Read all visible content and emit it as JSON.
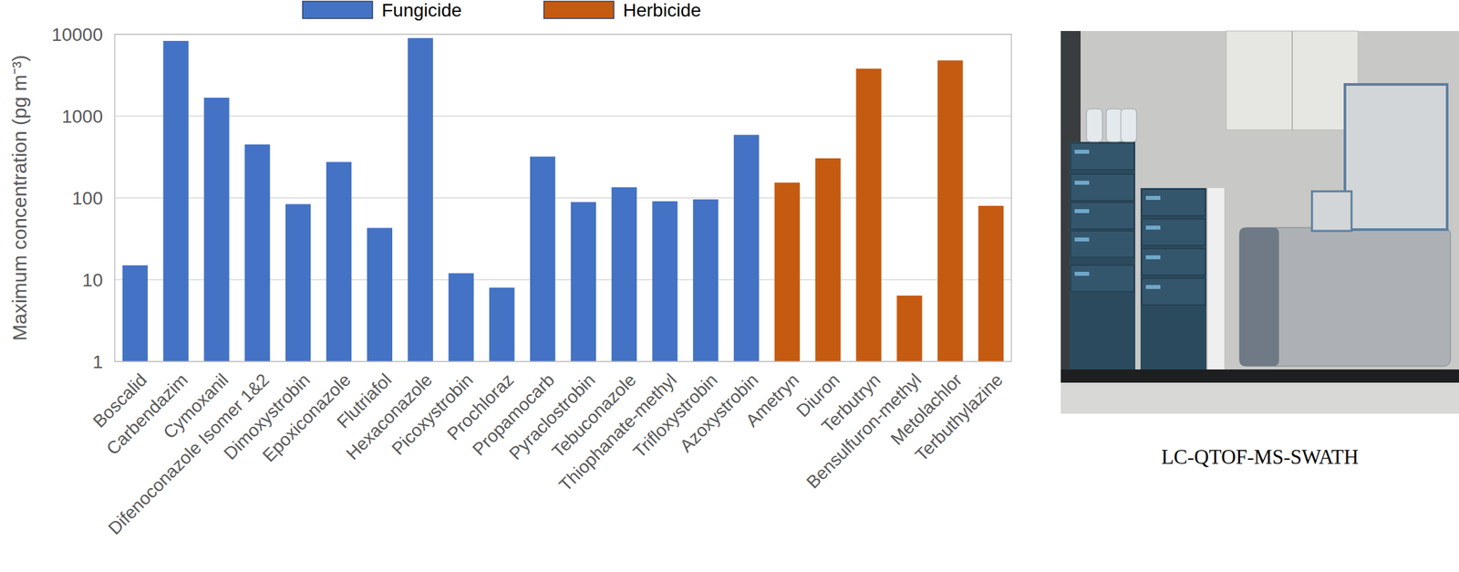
{
  "chart_data": {
    "type": "bar",
    "y_label": "Maximum concentration (pg m⁻³)",
    "categories": [
      "Boscalid",
      "Carbendazim",
      "Cymoxanil",
      "Difenoconazole Isomer 1&2",
      "Dimoxystrobin",
      "Epoxiconazole",
      "Flutriafol",
      "Hexaconazole",
      "Picoxystrobin",
      "Prochloraz",
      "Propamocarb",
      "Pyraclostrobin",
      "Tebuconazole",
      "Thiophanate-methyl",
      "Trifloxystrobin",
      "Azoxystrobin",
      "Ametryn",
      "Diuron",
      "Terbutryn",
      "Bensulfuron-methyl",
      "Metolachlor",
      "Terbuthylazine"
    ],
    "series": [
      {
        "name": "Fungicide",
        "color": "#4472c4",
        "values": [
          15,
          8300,
          1680,
          450,
          84,
          275,
          43,
          9000,
          12,
          8,
          320,
          89,
          135,
          91,
          96,
          590,
          null,
          null,
          null,
          null,
          null,
          null
        ]
      },
      {
        "name": "Herbicide",
        "color": "#c55a11",
        "values": [
          null,
          null,
          null,
          null,
          null,
          null,
          null,
          null,
          null,
          null,
          null,
          null,
          null,
          null,
          null,
          null,
          154,
          305,
          3800,
          6.4,
          4800,
          80
        ]
      }
    ],
    "ylim": [
      1,
      10000
    ],
    "yticks": [
      1,
      10,
      100,
      1000,
      10000
    ],
    "log": "y",
    "grid": true,
    "legend": "top"
  },
  "photo": {
    "caption": "LC-QTOF-MS-SWATH"
  }
}
